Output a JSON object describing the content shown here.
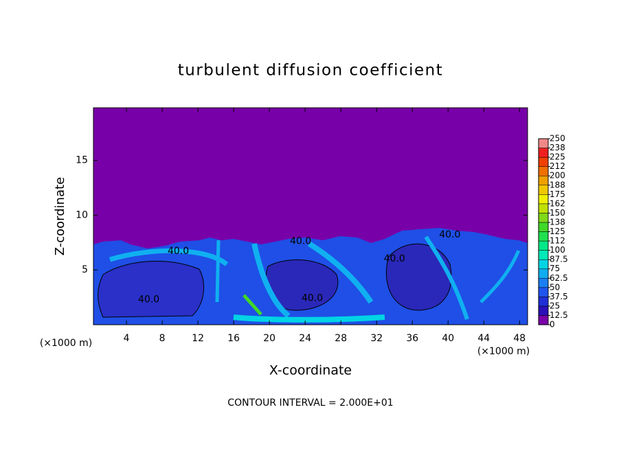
{
  "chart_data": {
    "type": "contour",
    "title": "turbulent diffusion coefficient",
    "x_label": "X-coordinate",
    "y_label": "Z-coordinate",
    "x_unit": "(×1000 m)",
    "footer": "CONTOUR INTERVAL = 2.000E+01",
    "xlim": [
      0.3,
      48.9
    ],
    "ylim": [
      0,
      19.8
    ],
    "xticks": [
      4,
      8,
      12,
      16,
      20,
      24,
      28,
      32,
      36,
      40,
      44,
      48
    ],
    "yticks": [
      5,
      10,
      15
    ],
    "colorbar": {
      "levels": [
        0,
        12.5,
        25,
        37.5,
        50,
        62.5,
        75,
        87.5,
        100,
        {
          "value": 112.5,
          "label": "112"
        },
        125,
        {
          "value": 137.5,
          "label": "138"
        },
        150,
        {
          "value": 162.5,
          "label": "162"
        },
        175,
        {
          "value": 187.5,
          "label": "188"
        },
        200,
        {
          "value": 212.5,
          "label": "212"
        },
        225,
        {
          "value": 237.5,
          "label": "238"
        },
        250
      ],
      "colors": [
        "#7a00a8",
        "#2a10b8",
        "#1f2fd8",
        "#1f55ee",
        "#1a80f4",
        "#10acf0",
        "#00d4e4",
        "#00e8b8",
        "#00e888",
        "#20e050",
        "#40d828",
        "#80d818",
        "#c0e000",
        "#f0f000",
        "#f0c800",
        "#f0a000",
        "#f07000",
        "#f04000",
        "#f02020",
        "#f08888"
      ]
    },
    "contour_labels": [
      {
        "text": "40.0",
        "x": 9.8,
        "y": 6.7
      },
      {
        "text": "40.0",
        "x": 23.5,
        "y": 7.6
      },
      {
        "text": "40.0",
        "x": 6.5,
        "y": 2.3
      },
      {
        "text": "40.0",
        "x": 24.8,
        "y": 2.4
      },
      {
        "text": "40.0",
        "x": 34.0,
        "y": 6.0
      },
      {
        "text": "40.0",
        "x": 40.2,
        "y": 8.2
      }
    ]
  }
}
